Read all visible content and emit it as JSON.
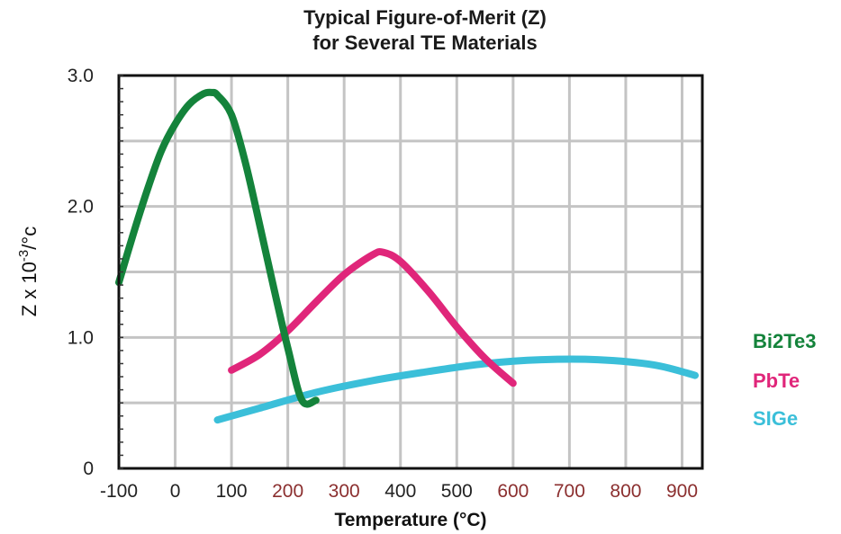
{
  "chart_data": {
    "type": "line",
    "title_line1": "Typical Figure-of-Merit (Z)",
    "title_line2": "for Several TE Materials",
    "xlabel": "Temperature (°C)",
    "ylabel": "Z x 10",
    "ylabel_sup": "-3",
    "ylabel_unit": "/°c",
    "xlim": [
      -100,
      950
    ],
    "ylim": [
      0,
      3.0
    ],
    "x_ticks": [
      {
        "value": -100,
        "label": "-100",
        "color": "#222222"
      },
      {
        "value": 0,
        "label": "0",
        "color": "#222222"
      },
      {
        "value": 100,
        "label": "100",
        "color": "#222222"
      },
      {
        "value": 200,
        "label": "200",
        "color": "#8b2f2f"
      },
      {
        "value": 300,
        "label": "300",
        "color": "#8b2f2f"
      },
      {
        "value": 400,
        "label": "400",
        "color": "#222222"
      },
      {
        "value": 500,
        "label": "500",
        "color": "#222222"
      },
      {
        "value": 600,
        "label": "600",
        "color": "#8b2f2f"
      },
      {
        "value": 700,
        "label": "700",
        "color": "#8b2f2f"
      },
      {
        "value": 800,
        "label": "800",
        "color": "#8b2f2f"
      },
      {
        "value": 900,
        "label": "900",
        "color": "#8b2f2f"
      }
    ],
    "y_ticks": [
      {
        "value": 0,
        "label": "0"
      },
      {
        "value": 1.0,
        "label": "1.0"
      },
      {
        "value": 2.0,
        "label": "2.0"
      },
      {
        "value": 3.0,
        "label": "3.0"
      }
    ],
    "grid": true,
    "legend_position": "right",
    "series": [
      {
        "name": "Bi2Te3",
        "color": "#14833b",
        "x": [
          -100,
          -75,
          -50,
          -25,
          0,
          25,
          50,
          65,
          75,
          100,
          125,
          150,
          175,
          200,
          225,
          250
        ],
        "y": [
          1.42,
          1.78,
          2.12,
          2.42,
          2.63,
          2.78,
          2.86,
          2.87,
          2.85,
          2.7,
          2.33,
          1.86,
          1.38,
          0.92,
          0.52,
          0.52
        ]
      },
      {
        "name": "PbTe",
        "color": "#e0267a",
        "x": [
          100,
          150,
          200,
          250,
          300,
          350,
          370,
          400,
          450,
          500,
          550,
          600
        ],
        "y": [
          0.75,
          0.87,
          1.05,
          1.27,
          1.48,
          1.63,
          1.65,
          1.58,
          1.35,
          1.08,
          0.84,
          0.65
        ]
      },
      {
        "name": "SIGe",
        "color": "#3bbfd9",
        "x": [
          75,
          150,
          250,
          350,
          450,
          550,
          650,
          750,
          850,
          950
        ],
        "y": [
          0.37,
          0.46,
          0.58,
          0.67,
          0.74,
          0.8,
          0.83,
          0.83,
          0.79,
          0.71
        ]
      }
    ]
  }
}
